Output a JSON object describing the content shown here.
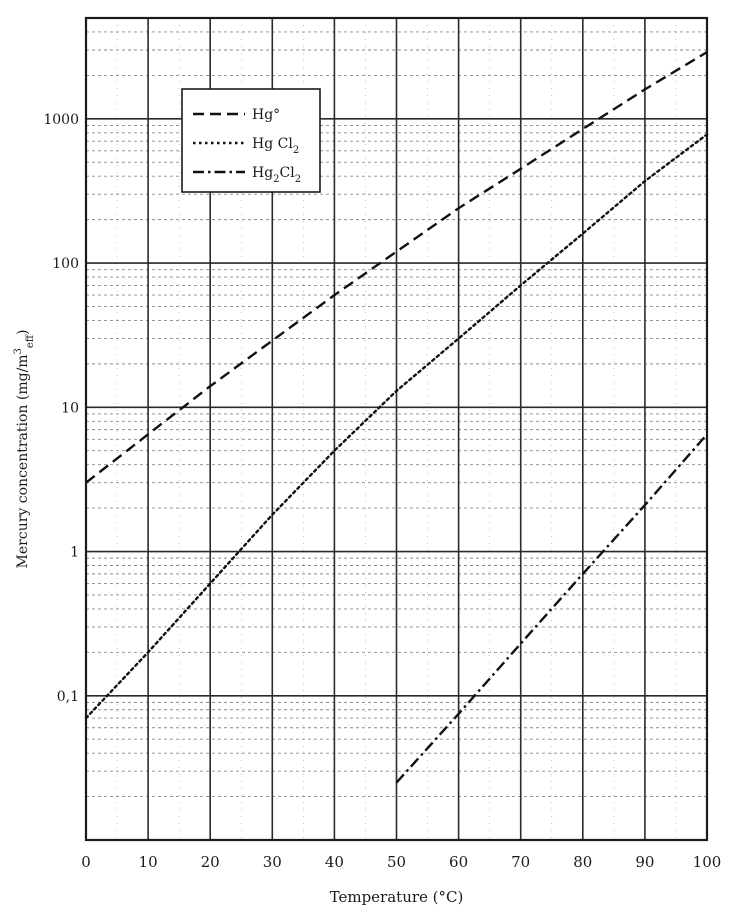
{
  "chart_data": {
    "type": "line",
    "title": "",
    "xlabel": "Temperature (°C)",
    "ylabel": {
      "main": "Mercury concentration (mg/m",
      "sup": "3",
      "sub": "eff",
      "close": ")"
    },
    "xlim": [
      0,
      100
    ],
    "ylim": [
      0.01,
      5000
    ],
    "yscale": "log",
    "grid": true,
    "legend_position": "top-left",
    "x_ticks": [
      0,
      10,
      20,
      30,
      40,
      50,
      60,
      70,
      80,
      90,
      100
    ],
    "x_tick_labels": [
      "0",
      "10",
      "20",
      "30",
      "40",
      "50",
      "60",
      "70",
      "80",
      "90",
      "100"
    ],
    "y_ticks": [
      0.1,
      1,
      10,
      100,
      1000
    ],
    "y_tick_labels": [
      "0,1",
      "1",
      "10",
      "100",
      "1000"
    ],
    "series": [
      {
        "name": "Hg°",
        "name_parts": [
          {
            "t": "Hg°"
          }
        ],
        "style": "dashed",
        "x": [
          0,
          10,
          20,
          30,
          40,
          50,
          60,
          70,
          80,
          90,
          100
        ],
        "y": [
          3,
          6.5,
          14,
          29,
          60,
          120,
          240,
          450,
          850,
          1600,
          2900
        ]
      },
      {
        "name": "Hg Cl2",
        "name_parts": [
          {
            "t": "Hg Cl"
          },
          {
            "t": "2",
            "sub": true
          }
        ],
        "style": "dotted",
        "x": [
          0,
          10,
          20,
          30,
          40,
          50,
          60,
          70,
          80,
          90,
          100
        ],
        "y": [
          0.07,
          0.2,
          0.6,
          1.8,
          5,
          13,
          30,
          70,
          160,
          370,
          780
        ]
      },
      {
        "name": "Hg2Cl2",
        "name_parts": [
          {
            "t": "Hg"
          },
          {
            "t": "2",
            "sub": true
          },
          {
            "t": "Cl"
          },
          {
            "t": "2",
            "sub": true
          }
        ],
        "style": "dashdot",
        "x": [
          50,
          60,
          70,
          80,
          90,
          100
        ],
        "y": [
          0.025,
          0.075,
          0.23,
          0.7,
          2.1,
          6.5
        ]
      }
    ]
  }
}
